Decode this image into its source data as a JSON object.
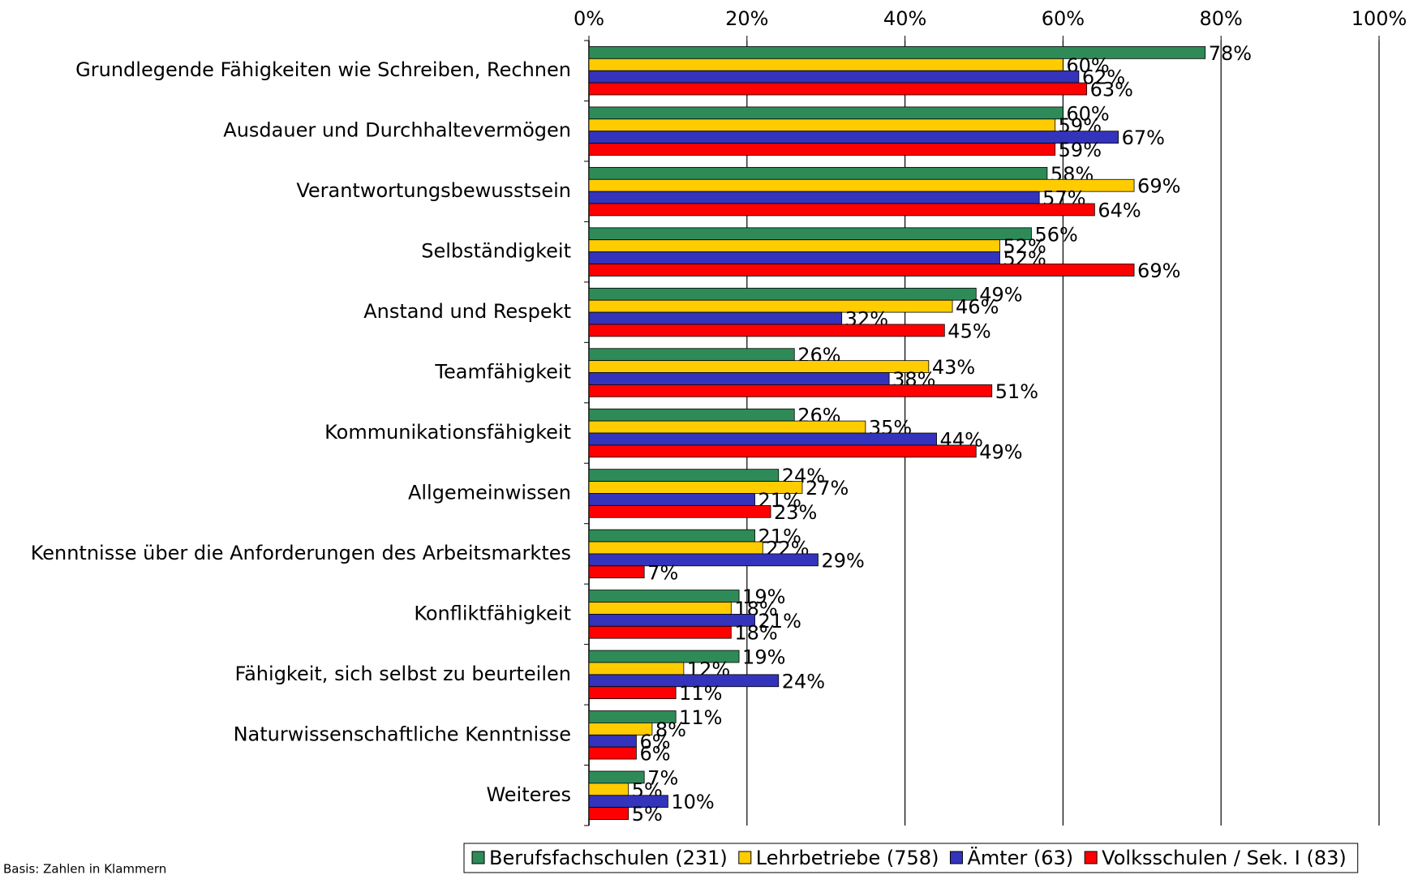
{
  "chart_data": {
    "type": "hbar",
    "categories": [
      "Grundlegende Fähigkeiten wie Schreiben, Rechnen",
      "Ausdauer und Durchhaltevermögen",
      "Verantwortungsbewusstsein",
      "Selbständigkeit",
      "Anstand und Respekt",
      "Teamfähigkeit",
      "Kommunikationsfähigkeit",
      "Allgemeinwissen",
      "Kenntnisse über die Anforderungen des Arbeitsmarktes",
      "Konfliktfähigkeit",
      "Fähigkeit, sich selbst zu beurteilen",
      "Naturwissenschaftliche Kenntnisse",
      "Weiteres"
    ],
    "series": [
      {
        "name": "Berufsfachschulen (231)",
        "color": "#2e8b57",
        "values": [
          78,
          60,
          58,
          56,
          49,
          26,
          26,
          24,
          21,
          19,
          19,
          11,
          7
        ],
        "value_labels": [
          "78%",
          "60%",
          "58%",
          "56%",
          "49%",
          "26%",
          "26%",
          "24%",
          "21%",
          "19%",
          "19%",
          "11%",
          "7%"
        ]
      },
      {
        "name": "Lehrbetriebe (758)",
        "color": "#ffcc00",
        "values": [
          60,
          59,
          69,
          52,
          46,
          43,
          35,
          27,
          22,
          18,
          12,
          8,
          5
        ],
        "value_labels": [
          "60%",
          "59%",
          "69%",
          "52%",
          "46%",
          "43%",
          "35%",
          "27%",
          "22%",
          "18%",
          "12%",
          "8%",
          "5%"
        ]
      },
      {
        "name": "Ämter (63)",
        "color": "#3333bb",
        "values": [
          62,
          67,
          57,
          52,
          32,
          38,
          44,
          21,
          29,
          21,
          24,
          6,
          10
        ],
        "value_labels": [
          "62%",
          "67%",
          "57%",
          "52%",
          "32%",
          "38%",
          "44%",
          "21%",
          "29%",
          "21%",
          "24%",
          "6%",
          "10%"
        ]
      },
      {
        "name": "Volksschulen / Sek. I (83)",
        "color": "#ff0000",
        "values": [
          63,
          59,
          64,
          69,
          45,
          51,
          49,
          23,
          7,
          18,
          11,
          6,
          5
        ],
        "value_labels": [
          "63%",
          "59%",
          "64%",
          "69%",
          "45%",
          "51%",
          "49%",
          "23%",
          "7%",
          "18%",
          "11%",
          "6%",
          "5%"
        ]
      }
    ],
    "xlim": [
      0,
      100
    ],
    "xticks": [
      {
        "value": 0,
        "label": "0%"
      },
      {
        "value": 20,
        "label": "20%"
      },
      {
        "value": 40,
        "label": "40%"
      },
      {
        "value": 60,
        "label": "60%"
      },
      {
        "value": 80,
        "label": "80%"
      },
      {
        "value": 100,
        "label": "100%"
      }
    ],
    "grid": true,
    "legend": "bottom",
    "footnote": "Basis: Zahlen in Klammern"
  }
}
